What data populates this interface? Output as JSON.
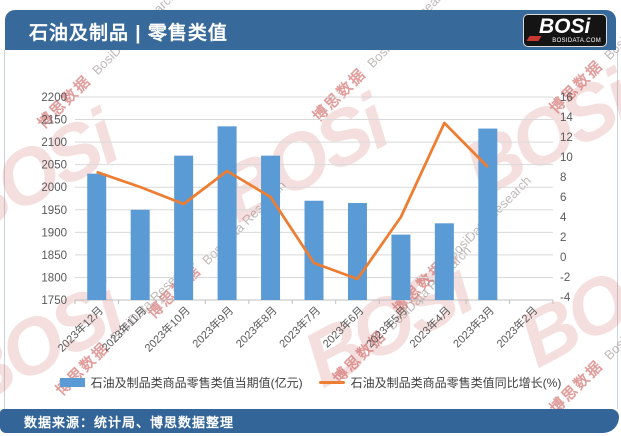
{
  "header": {
    "title": "石油及制品 | 零售类值",
    "logo": {
      "text": "BOSi",
      "subtext": "BOSIDATA.COM"
    }
  },
  "footer": {
    "source_label": "数据来源：统计局、博思数据整理"
  },
  "legend": {
    "bar_label": "石油及制品类商品零售类值当期值(亿元)",
    "line_label": "石油及制品类商品零售类值同比增长(%)"
  },
  "watermark": {
    "cn": "博思数据",
    "en": "BosiData Research",
    "logo": "BOSi"
  },
  "colors": {
    "header_bg": "#38699B",
    "footer_bg": "#336598",
    "bar": "#5B9BD5",
    "line": "#ED7D31",
    "grid": "#D9D9D9",
    "axis_line": "#BFBFBF",
    "axis_text": "#595959"
  },
  "chart_data": {
    "type": "bar",
    "title": "石油及制品 | 零售类值",
    "categories": [
      "2023年12月",
      "2023年11月",
      "2023年10月",
      "2023年9月",
      "2023年8月",
      "2023年7月",
      "2023年6月",
      "2023年5月",
      "2023年4月",
      "2023年3月",
      "2023年2月"
    ],
    "series": [
      {
        "name": "石油及制品类商品零售类值当期值(亿元)",
        "type": "bar",
        "axis": "left",
        "values": [
          2030,
          1950,
          2070,
          2135,
          2070,
          1970,
          1965,
          1895,
          1920,
          2130,
          null
        ]
      },
      {
        "name": "石油及制品类商品零售类值同比增长(%)",
        "type": "line",
        "axis": "right",
        "values": [
          8.5,
          7.0,
          5.3,
          8.6,
          6.0,
          -0.6,
          -2.2,
          4.0,
          13.4,
          9.0,
          null
        ]
      }
    ],
    "left_axis": {
      "label": "当期值(亿元)",
      "min": 1750,
      "max": 2200,
      "ticks": [
        2200,
        2150,
        2100,
        2050,
        2000,
        1950,
        1900,
        1850,
        1800,
        1750
      ]
    },
    "right_axis": {
      "label": "同比增长(%)",
      "min": -4,
      "max": 16,
      "ticks": [
        16,
        14,
        12,
        10,
        8,
        6,
        4,
        2,
        0,
        -2,
        -4
      ]
    },
    "grid": true,
    "legend_position": "bottom"
  }
}
